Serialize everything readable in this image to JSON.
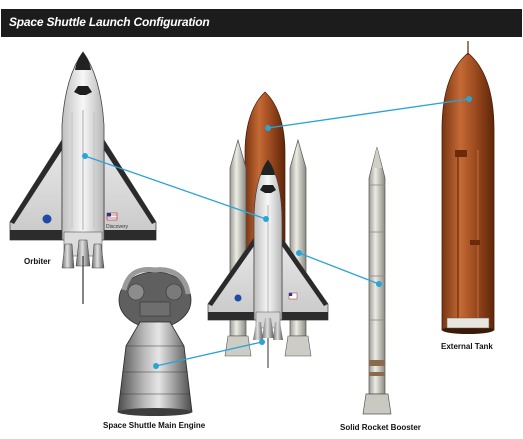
{
  "header": {
    "title": "Space Shuttle Launch Configuration"
  },
  "labels": {
    "orbiter": "Orbiter",
    "main_engine": "Space Shuttle Main Engine",
    "solid_rocket_booster": "Solid Rocket Booster",
    "external_tank": "External Tank"
  },
  "decals": {
    "orbiter_name": "Discovery"
  },
  "colors": {
    "title_bar": "#1c1c1c",
    "leader_line": "#2aa3d8",
    "external_tank": "#a24e22",
    "orbiter_body": "#e9e9e9",
    "booster_body": "#d9d9d1"
  }
}
